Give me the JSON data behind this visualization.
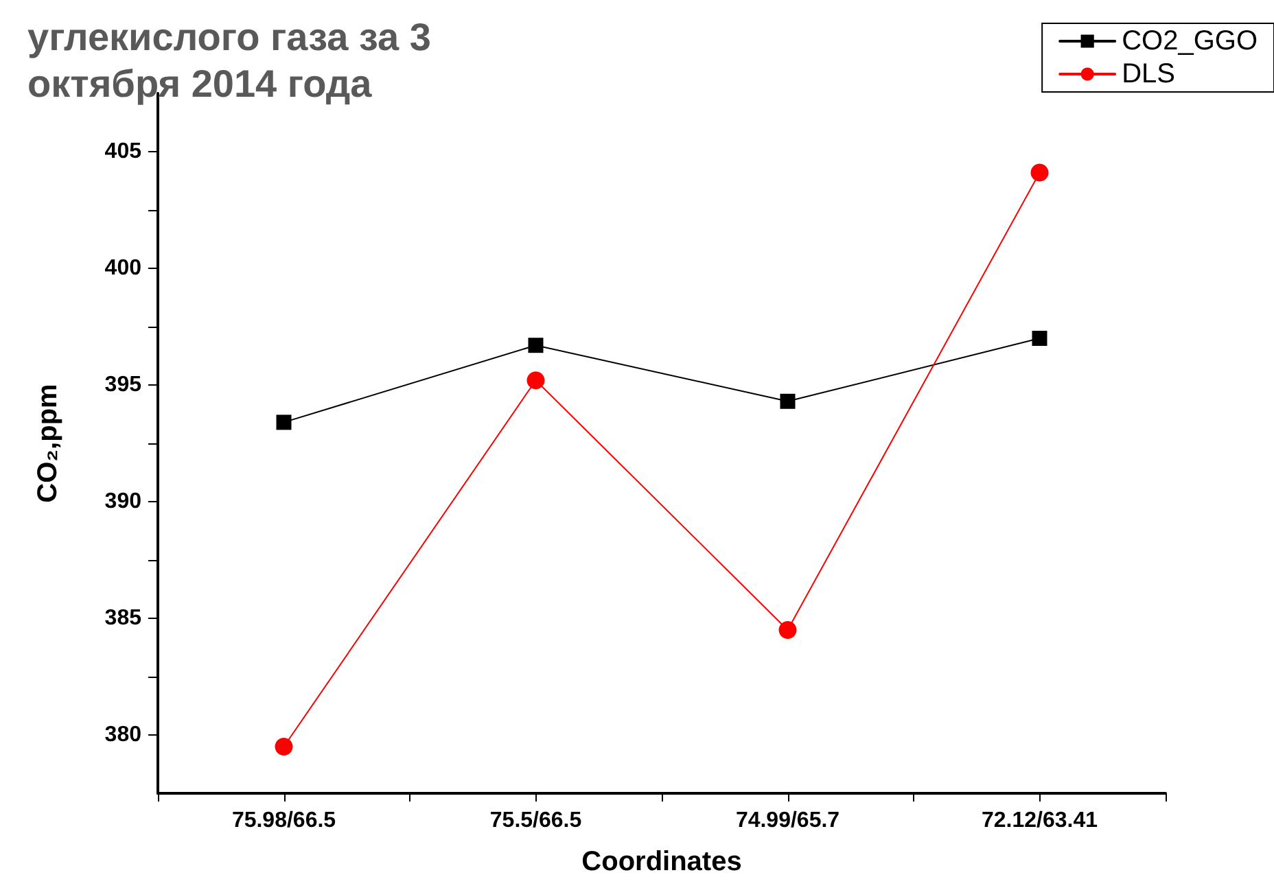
{
  "chart_data": {
    "type": "line",
    "title": "углекислого газа за 3    октября 2014 года",
    "xlabel": "Coordinates",
    "ylabel": "CO₂,ppm",
    "categories": [
      "75.98/66.5",
      "75.5/66.5",
      "74.99/65.7",
      "72.12/63.41"
    ],
    "series": [
      {
        "name": "CO2_GGO",
        "color": "#000000",
        "marker": "square",
        "values": [
          393.4,
          396.7,
          394.3,
          397.0
        ]
      },
      {
        "name": "DLS",
        "color": "#ff0000",
        "marker": "circle",
        "values": [
          379.5,
          395.2,
          384.5,
          404.1
        ]
      }
    ],
    "ylim": [
      377.5,
      407.5
    ],
    "yticks": [
      380,
      {
        "value": 382.5,
        "label": null
      },
      385,
      {
        "value": 387.5,
        "label": null
      },
      390,
      {
        "value": 392.5,
        "label": null
      },
      395,
      {
        "value": 397.5,
        "label": null
      },
      400,
      {
        "value": 402.5,
        "label": null
      },
      405
    ],
    "grid": false,
    "legend": "top right",
    "line_style": "solid"
  }
}
